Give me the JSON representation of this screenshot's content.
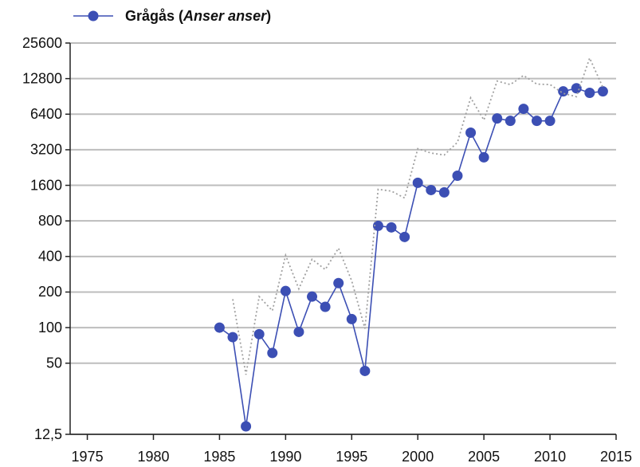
{
  "chart_data": {
    "type": "line",
    "x": [
      1985,
      1986,
      1987,
      1988,
      1989,
      1990,
      1991,
      1992,
      1993,
      1994,
      1995,
      1996,
      1997,
      1998,
      1999,
      2000,
      2001,
      2002,
      2003,
      2004,
      2005,
      2006,
      2007,
      2008,
      2009,
      2010,
      2011,
      2012,
      2013,
      2014
    ],
    "series": [
      {
        "name": "Grågås (Anser anser)",
        "color": "#3c4fb4",
        "style": "solid-markers",
        "values": [
          100,
          83,
          14.6,
          88,
          61,
          204,
          92,
          183,
          150,
          238,
          118,
          43,
          726,
          705,
          585,
          1680,
          1460,
          1395,
          1930,
          4460,
          2760,
          5890,
          5620,
          7100,
          5620,
          5620,
          9980,
          10600,
          9700,
          9980
        ]
      },
      {
        "color": "#a0a0a0",
        "style": "dotted",
        "values": [
          null,
          174,
          40,
          183,
          139,
          409,
          213,
          379,
          310,
          470,
          249,
          98,
          1480,
          1430,
          1250,
          3270,
          3000,
          2890,
          3700,
          8810,
          5710,
          12200,
          11400,
          13600,
          11500,
          11400,
          9600,
          9000,
          19100,
          10800
        ]
      }
    ],
    "xlim": [
      1973.7,
      2015
    ],
    "xticks": [
      1975,
      1980,
      1985,
      1990,
      1995,
      2000,
      2005,
      2010,
      2015
    ],
    "ylim": [
      12.5,
      25600
    ],
    "log_scale": true,
    "yticks": [
      {
        "value": 12.5,
        "label": "12,5"
      },
      50,
      100,
      200,
      400,
      800,
      1600,
      3200,
      6400,
      12800,
      25600
    ],
    "grid": true,
    "legend": "top-left"
  }
}
